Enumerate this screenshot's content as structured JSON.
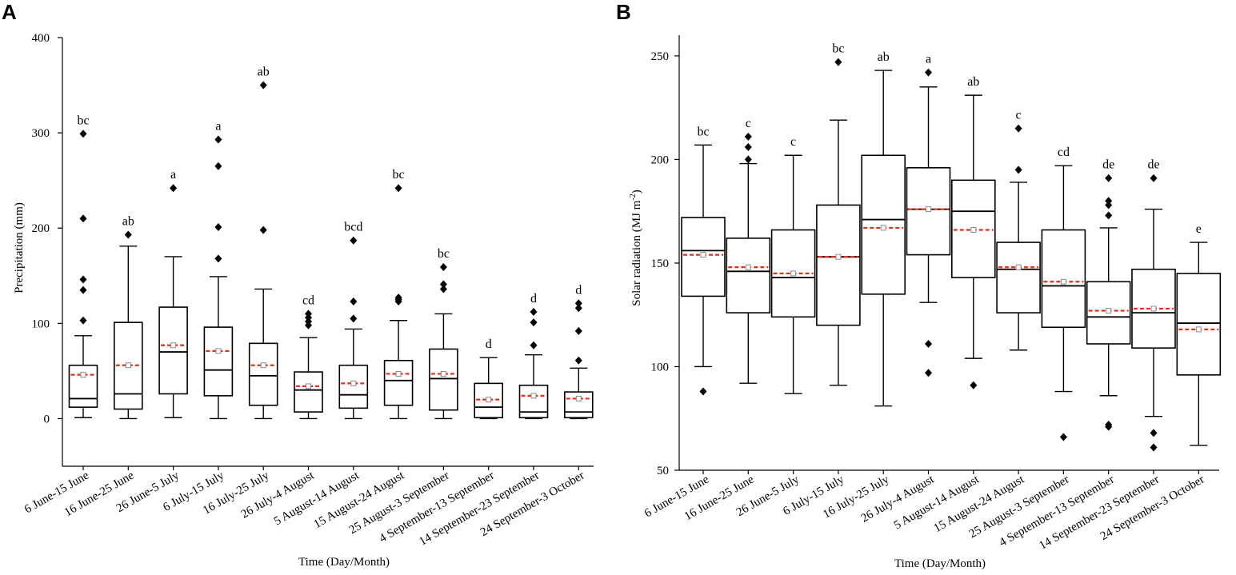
{
  "chart_data": [
    {
      "type": "box",
      "panel_label": "A",
      "title": "",
      "xlabel": "Time (Day/Month)",
      "ylabel": "Precipitation (mm)",
      "ylim": [
        -50,
        400
      ],
      "yticks": [
        0,
        100,
        200,
        300,
        400
      ],
      "categories": [
        "6 June-15 June",
        "16 June-25 June",
        "26 June-5 July",
        "6 July-15 July",
        "16 July-25 July",
        "26 July-4 August",
        "5 August-14 August",
        "15 August-24 August",
        "25 August-3 September",
        "4 September-13 September",
        "14 September-23 September",
        "24 September-3 October"
      ],
      "boxes": [
        {
          "min": 1,
          "q1": 12,
          "median": 21,
          "q3": 56,
          "max": 87,
          "mean": 46,
          "outliers": [
            103,
            135,
            146,
            210,
            299
          ],
          "letter": "bc"
        },
        {
          "min": 0,
          "q1": 10,
          "median": 26,
          "q3": 101,
          "max": 181,
          "mean": 56,
          "outliers": [
            193
          ],
          "letter": "ab"
        },
        {
          "min": 1,
          "q1": 26,
          "median": 70,
          "q3": 117,
          "max": 170,
          "mean": 77,
          "outliers": [
            242
          ],
          "letter": "a"
        },
        {
          "min": 0,
          "q1": 24,
          "median": 51,
          "q3": 96,
          "max": 149,
          "mean": 71,
          "outliers": [
            168,
            201,
            265,
            293
          ],
          "letter": "a"
        },
        {
          "min": 0,
          "q1": 14,
          "median": 45,
          "q3": 79,
          "max": 136,
          "mean": 56,
          "outliers": [
            198,
            350
          ],
          "letter": "ab"
        },
        {
          "min": 0,
          "q1": 7,
          "median": 30,
          "q3": 49,
          "max": 85,
          "mean": 34,
          "outliers": [
            98,
            102,
            106,
            110
          ],
          "letter": "cd"
        },
        {
          "min": 0,
          "q1": 11,
          "median": 25,
          "q3": 56,
          "max": 94,
          "mean": 37,
          "outliers": [
            105,
            123,
            187
          ],
          "letter": "bcd"
        },
        {
          "min": 0,
          "q1": 14,
          "median": 40,
          "q3": 61,
          "max": 103,
          "mean": 47,
          "outliers": [
            123,
            125,
            127,
            242
          ],
          "letter": "bc"
        },
        {
          "min": 0,
          "q1": 9,
          "median": 42,
          "q3": 73,
          "max": 110,
          "mean": 47,
          "outliers": [
            136,
            141,
            159
          ],
          "letter": "bc"
        },
        {
          "min": 0,
          "q1": 1,
          "median": 12,
          "q3": 37,
          "max": 64,
          "mean": 20,
          "outliers": [],
          "letter": "d"
        },
        {
          "min": 0,
          "q1": 1,
          "median": 7,
          "q3": 35,
          "max": 67,
          "mean": 24,
          "outliers": [
            77,
            101,
            112
          ],
          "letter": "d"
        },
        {
          "min": 0,
          "q1": 1,
          "median": 7,
          "q3": 28,
          "max": 53,
          "mean": 21,
          "outliers": [
            61,
            92,
            116,
            121
          ],
          "letter": "d"
        }
      ]
    },
    {
      "type": "box",
      "panel_label": "B",
      "title": "",
      "xlabel": "Time (Day/Month)",
      "ylabel": "Solar radiation (MJ m",
      "ylabel_sup": "-2",
      "ylabel_end": ")",
      "ylim": [
        50,
        260
      ],
      "yticks": [
        50,
        100,
        150,
        200,
        250
      ],
      "categories": [
        "6 June-15 June",
        "16 June-25 June",
        "26 June-5 July",
        "6 July-15 July",
        "16 July-25 July",
        "26 July-4 August",
        "5 August-14 August",
        "15 August-24 August",
        "25 August-3 September",
        "4 September-13 September",
        "14 September-23 September",
        "24 September-3 October"
      ],
      "boxes": [
        {
          "min": 100,
          "q1": 134,
          "median": 156,
          "q3": 172,
          "max": 207,
          "mean": 154,
          "outliers": [
            88
          ],
          "letter": "bc"
        },
        {
          "min": 92,
          "q1": 126,
          "median": 146,
          "q3": 162,
          "max": 198,
          "mean": 148,
          "outliers": [
            200,
            206,
            211
          ],
          "letter": "c"
        },
        {
          "min": 87,
          "q1": 124,
          "median": 143,
          "q3": 166,
          "max": 202,
          "mean": 145,
          "outliers": [],
          "letter": "c"
        },
        {
          "min": 91,
          "q1": 120,
          "median": 153,
          "q3": 178,
          "max": 219,
          "mean": 153,
          "outliers": [
            247
          ],
          "letter": "bc"
        },
        {
          "min": 81,
          "q1": 135,
          "median": 171,
          "q3": 202,
          "max": 243,
          "mean": 167,
          "outliers": [],
          "letter": "ab"
        },
        {
          "min": 131,
          "q1": 154,
          "median": 176,
          "q3": 196,
          "max": 235,
          "mean": 176,
          "outliers": [
            97,
            111,
            242
          ],
          "letter": "a"
        },
        {
          "min": 104,
          "q1": 143,
          "median": 175,
          "q3": 190,
          "max": 231,
          "mean": 166,
          "outliers": [
            91
          ],
          "letter": "ab"
        },
        {
          "min": 108,
          "q1": 126,
          "median": 147,
          "q3": 160,
          "max": 189,
          "mean": 148,
          "outliers": [
            195,
            215
          ],
          "letter": "c"
        },
        {
          "min": 88,
          "q1": 119,
          "median": 139,
          "q3": 166,
          "max": 197,
          "mean": 141,
          "outliers": [
            66
          ],
          "letter": "cd"
        },
        {
          "min": 86,
          "q1": 111,
          "median": 124,
          "q3": 141,
          "max": 167,
          "mean": 127,
          "outliers": [
            71,
            72,
            173,
            178,
            180,
            191
          ],
          "letter": "de"
        },
        {
          "min": 76,
          "q1": 109,
          "median": 126,
          "q3": 147,
          "max": 176,
          "mean": 128,
          "outliers": [
            61,
            68,
            191
          ],
          "letter": "de"
        },
        {
          "min": 62,
          "q1": 96,
          "median": 121,
          "q3": 145,
          "max": 160,
          "mean": 118,
          "outliers": [],
          "letter": "e"
        }
      ]
    }
  ],
  "colors": {
    "axis": "#000000",
    "box": "#000000",
    "mean_line": "#e0301e",
    "mean_marker_stroke": "#8a8a8a",
    "outlier": "#000000"
  }
}
